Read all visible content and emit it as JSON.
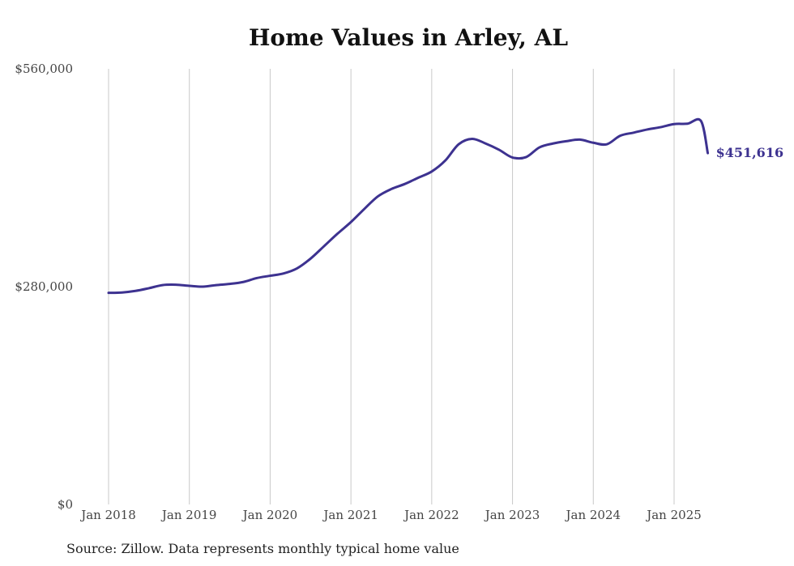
{
  "chart_data": {
    "type": "line",
    "title": "Home Values in Arley, AL",
    "xlabel": "",
    "ylabel": "",
    "ylim": [
      0,
      560000
    ],
    "yticks": [
      {
        "value": 0,
        "label": "$0"
      },
      {
        "value": 280000,
        "label": "$280,000"
      },
      {
        "value": 560000,
        "label": "$560,000"
      }
    ],
    "xticks": [
      {
        "value": 2018.0,
        "label": "Jan 2018"
      },
      {
        "value": 2019.0,
        "label": "Jan 2019"
      },
      {
        "value": 2020.0,
        "label": "Jan 2020"
      },
      {
        "value": 2021.0,
        "label": "Jan 2021"
      },
      {
        "value": 2022.0,
        "label": "Jan 2022"
      },
      {
        "value": 2023.0,
        "label": "Jan 2023"
      },
      {
        "value": 2024.0,
        "label": "Jan 2024"
      },
      {
        "value": 2025.0,
        "label": "Jan 2025"
      }
    ],
    "grid": "vertical",
    "legend": "none",
    "end_label": "$451,616",
    "series": [
      {
        "color": "#3d3290",
        "x": [
          2018.0,
          2018.167,
          2018.333,
          2018.5,
          2018.667,
          2018.833,
          2019.0,
          2019.167,
          2019.333,
          2019.5,
          2019.667,
          2019.833,
          2020.0,
          2020.167,
          2020.333,
          2020.5,
          2020.667,
          2020.833,
          2021.0,
          2021.167,
          2021.333,
          2021.5,
          2021.667,
          2021.833,
          2022.0,
          2022.167,
          2022.333,
          2022.5,
          2022.667,
          2022.833,
          2023.0,
          2023.167,
          2023.333,
          2023.5,
          2023.667,
          2023.833,
          2024.0,
          2024.167,
          2024.333,
          2024.5,
          2024.667,
          2024.833,
          2025.0,
          2025.167,
          2025.333,
          2025.417
        ],
        "y": [
          272000,
          272500,
          274500,
          278000,
          282000,
          282500,
          281000,
          280000,
          282000,
          283500,
          286000,
          291000,
          294000,
          297000,
          303500,
          316000,
          332000,
          348000,
          363000,
          380000,
          396000,
          405500,
          412000,
          420000,
          428000,
          442000,
          463000,
          470000,
          464000,
          456000,
          446000,
          446500,
          459000,
          464000,
          467000,
          469000,
          465000,
          463000,
          474000,
          478000,
          482000,
          485000,
          489000,
          489500,
          493000,
          451616
        ]
      }
    ],
    "note": "Source: Zillow. Data represents monthly typical home value"
  }
}
